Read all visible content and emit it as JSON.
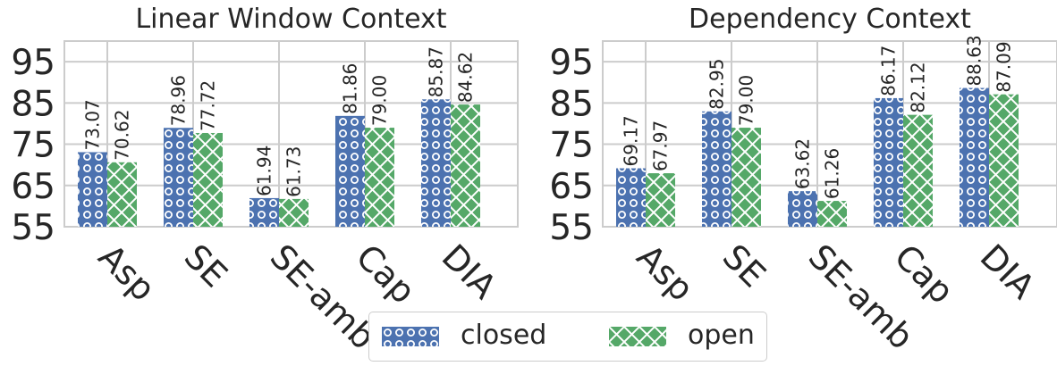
{
  "colors": {
    "closed": "#4c72b0",
    "open": "#55a868",
    "grid": "#cccccc",
    "text": "#262626"
  },
  "legend": {
    "position": "bottom-center",
    "items": [
      "closed",
      "open"
    ]
  },
  "chart_data": [
    {
      "type": "bar",
      "title": "Linear Window Context",
      "categories": [
        "Asp",
        "SE",
        "SE-amb",
        "Cap",
        "DIA"
      ],
      "series": [
        {
          "name": "closed",
          "values": [
            73.07,
            78.96,
            61.94,
            81.86,
            85.87
          ],
          "labels": [
            "73.07",
            "78.96",
            "61.94",
            "81.86",
            "85.87"
          ]
        },
        {
          "name": "open",
          "values": [
            70.62,
            77.72,
            61.73,
            79.0,
            84.62
          ],
          "labels": [
            "70.62",
            "77.72",
            "61.73",
            "79.00",
            "84.62"
          ]
        }
      ],
      "yticks": [
        "55",
        "65",
        "75",
        "85",
        "95"
      ],
      "ylim": [
        55,
        100
      ],
      "grid": true
    },
    {
      "type": "bar",
      "title": "Dependency Context",
      "categories": [
        "Asp",
        "SE",
        "SE-amb",
        "Cap",
        "DIA"
      ],
      "series": [
        {
          "name": "closed",
          "values": [
            69.17,
            82.95,
            63.62,
            86.17,
            88.63
          ],
          "labels": [
            "69.17",
            "82.95",
            "63.62",
            "86.17",
            "88.63"
          ]
        },
        {
          "name": "open",
          "values": [
            67.97,
            79.0,
            61.26,
            82.12,
            87.09
          ],
          "labels": [
            "67.97",
            "79.00",
            "61.26",
            "82.12",
            "87.09"
          ]
        }
      ],
      "yticks": [
        "55",
        "65",
        "75",
        "85",
        "95"
      ],
      "ylim": [
        55,
        100
      ],
      "grid": true
    }
  ]
}
